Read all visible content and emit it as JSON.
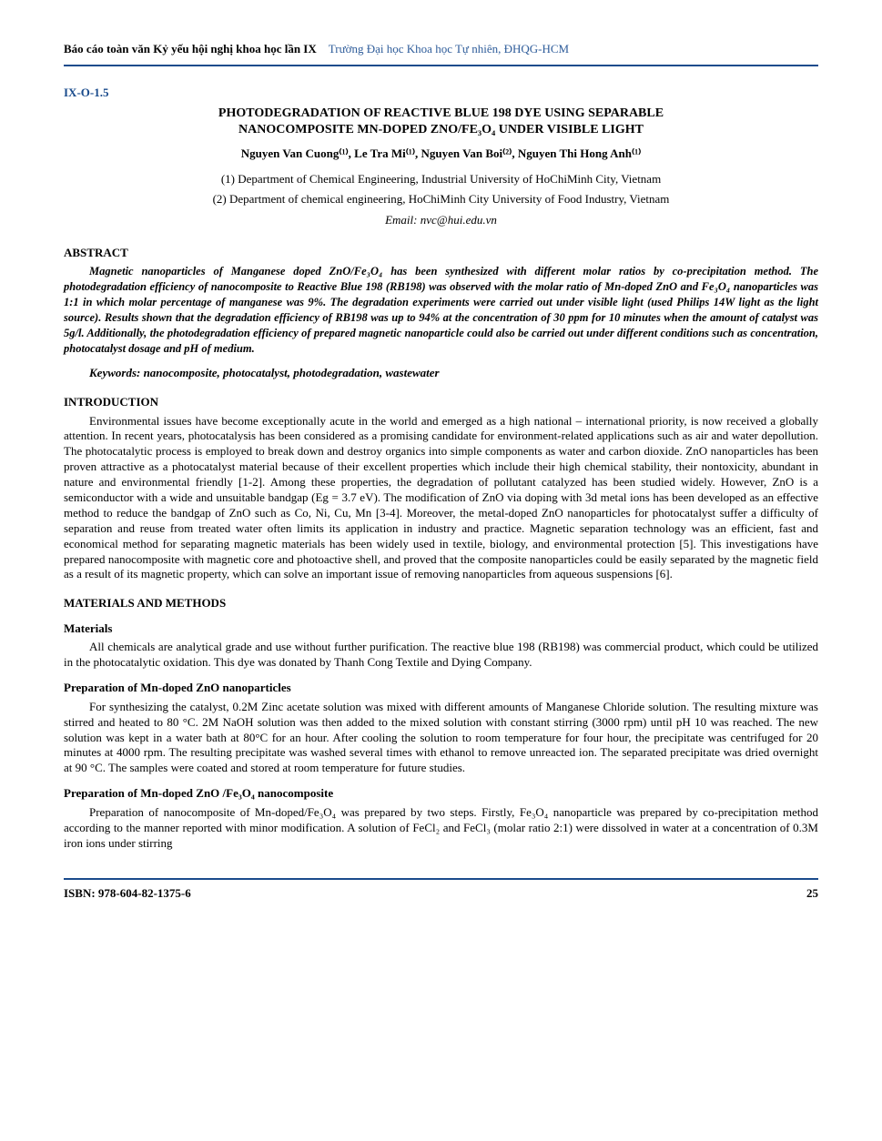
{
  "header": {
    "left": "Báo cáo toàn văn Kỷ yếu hội nghị khoa học lần IX",
    "right": "Trường Đại học Khoa học Tự nhiên, ĐHQG-HCM"
  },
  "section_code": "IX-O-1.5",
  "title_line1": "PHOTODEGRADATION OF REACTIVE BLUE 198 DYE USING SEPARABLE",
  "title_line2": "NANOCOMPOSITE MN-DOPED ZNO/FE₃O₄ UNDER VISIBLE LIGHT",
  "authors": "Nguyen Van Cuong⁽¹⁾, Le Tra Mi⁽¹⁾, Nguyen Van Boi⁽²⁾, Nguyen Thi Hong Anh⁽¹⁾",
  "affiliation1": "(1) Department of Chemical Engineering, Industrial University of HoChiMinh City, Vietnam",
  "affiliation2": "(2) Department of chemical engineering, HoChiMinh City University of Food Industry, Vietnam",
  "email": "Email: nvc@hui.edu.vn",
  "abstract_heading": "ABSTRACT",
  "abstract_text": "Magnetic nanoparticles of Manganese doped ZnO/Fe₃O₄ has been synthesized with different molar ratios by co-precipitation method. The photodegradation efficiency of nanocomposite to Reactive Blue 198 (RB198) was observed with the molar ratio of Mn-doped ZnO and Fe₃O₄ nanoparticles was 1:1 in which molar percentage of manganese was 9%. The degradation experiments were carried out under visible light (used Philips 14W light as the light source). Results shown that the degradation efficiency of RB198 was up to 94% at the concentration of 30 ppm for 10 minutes when the amount of catalyst was 5g/l. Additionally, the photodegradation efficiency of prepared magnetic nanoparticle could also be carried out under different conditions such as concentration, photocatalyst dosage and pH of medium.",
  "keywords": "Keywords: nanocomposite, photocatalyst, photodegradation, wastewater",
  "intro_heading": "INTRODUCTION",
  "intro_text": "Environmental issues have become exceptionally acute in the world and emerged as a high national – international priority, is now received a globally attention. In recent years, photocatalysis has been considered as a promising candidate for environment-related applications such as air and water depollution. The photocatalytic process is employed to break down and destroy organics into simple components as water and carbon dioxide. ZnO nanoparticles has been proven attractive as a photocatalyst material because of their excellent properties which include their high chemical stability, their nontoxicity, abundant in nature and environmental friendly [1-2]. Among these properties, the degradation of pollutant catalyzed has been studied widely. However, ZnO is a semiconductor with a wide and unsuitable bandgap (Eg = 3.7 eV). The modification of ZnO via doping with 3d metal ions has been developed as an effective method to reduce the bandgap of ZnO such as Co, Ni, Cu, Mn [3-4]. Moreover, the metal-doped ZnO nanoparticles for photocatalyst suffer a difficulty of separation and reuse from treated water often limits its application in industry and practice. Magnetic separation technology was an efficient, fast and economical method for separating magnetic materials has been widely used in textile, biology, and environmental protection [5]. This investigations have prepared nanocomposite with magnetic core and photoactive shell, and proved that the composite nanoparticles could be easily separated by the magnetic field as a result of its magnetic property, which can solve an important issue of removing nanoparticles from aqueous suspensions [6].",
  "methods_heading": "MATERIALS AND METHODS",
  "materials_heading": "Materials",
  "materials_text": "All chemicals are analytical grade and use without further purification. The reactive blue 198 (RB198) was commercial product, which could be utilized in the photocatalytic oxidation. This dye was donated by Thanh Cong Textile and Dying Company.",
  "prep1_heading": "Preparation of Mn-doped ZnO nanoparticles",
  "prep1_text": "For synthesizing the catalyst, 0.2M Zinc acetate solution was mixed with different amounts of Manganese Chloride solution. The resulting mixture was stirred and heated to 80 °C. 2M NaOH solution was then added to the mixed solution with constant stirring (3000 rpm) until pH 10 was reached. The new solution was kept in a water bath at 80°C for an hour. After cooling the solution to room temperature for four hour, the precipitate was centrifuged for 20 minutes at 4000 rpm. The resulting precipitate was washed several times with ethanol to remove unreacted ion. The separated precipitate was dried overnight at 90 °C. The samples were coated and stored at room temperature for future studies.",
  "prep2_heading": "Preparation of Mn-doped ZnO /Fe₃O₄ nanocomposite",
  "prep2_text": "Preparation of nanocomposite of Mn-doped/Fe₃O₄ was prepared by two steps. Firstly, Fe₃O₄ nanoparticle was prepared by co-precipitation method according to the manner reported with minor modification. A solution of FeCl₂ and FeCl₃ (molar ratio 2:1) were dissolved in water at a concentration of 0.3M iron ions under stirring",
  "footer": {
    "isbn": "ISBN: 978-604-82-1375-6",
    "page": "25"
  },
  "colors": {
    "heading_blue": "#1a4b8c",
    "header_blue": "#2e5c9a",
    "text": "#000000",
    "background": "#ffffff"
  }
}
